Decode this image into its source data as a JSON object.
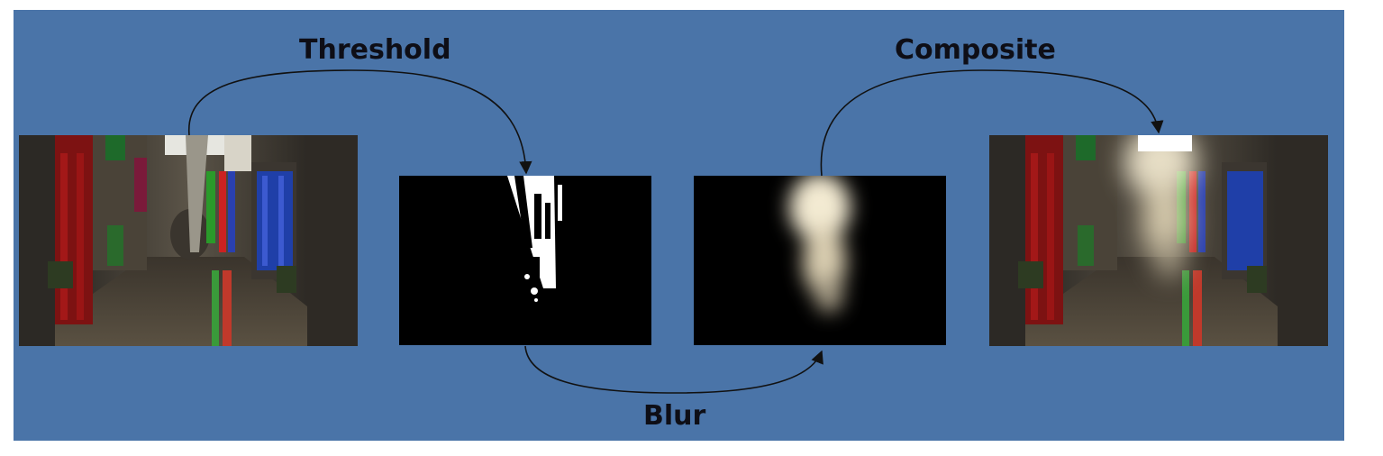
{
  "labels": {
    "threshold": "Threshold",
    "blur": "Blur",
    "composite": "Composite"
  },
  "images": {
    "original": "corridor-scene",
    "threshold": "thresholded-bright-pass",
    "blur": "blurred-bright-pass",
    "composite": "bloom-composite"
  },
  "colors": {
    "background": "#4a74a8",
    "label": "#0e0e16",
    "arrow": "#111111"
  }
}
